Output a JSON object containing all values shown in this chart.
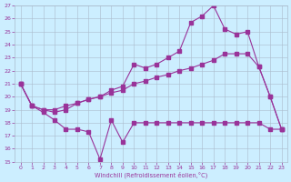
{
  "xlabel": "Windchill (Refroidissement éolien,°C)",
  "xlim": [
    -0.5,
    23.5
  ],
  "ylim": [
    15,
    27
  ],
  "yticks": [
    15,
    16,
    17,
    18,
    19,
    20,
    21,
    22,
    23,
    24,
    25,
    26,
    27
  ],
  "xticks": [
    0,
    1,
    2,
    3,
    4,
    5,
    6,
    7,
    8,
    9,
    10,
    11,
    12,
    13,
    14,
    15,
    16,
    17,
    18,
    19,
    20,
    21,
    22,
    23
  ],
  "bg_color": "#cceeff",
  "grid_color": "#aabbcc",
  "line_color": "#993399",
  "series1_x": [
    0,
    1,
    2,
    3,
    4,
    5,
    6,
    7,
    8,
    9,
    10,
    11,
    12,
    13,
    14,
    15,
    16,
    17,
    18,
    19,
    20,
    21,
    22,
    23
  ],
  "series1_y": [
    21.0,
    19.3,
    18.8,
    18.2,
    17.5,
    17.5,
    17.3,
    15.2,
    18.2,
    16.5,
    18.0,
    18.0,
    18.0,
    18.0,
    18.0,
    18.0,
    18.0,
    18.0,
    18.0,
    18.0,
    18.0,
    18.0,
    17.5,
    17.5
  ],
  "series2_x": [
    0,
    1,
    2,
    3,
    4,
    5,
    6,
    7,
    8,
    9,
    10,
    11,
    12,
    13,
    14,
    15,
    16,
    17,
    18,
    19,
    20,
    21,
    22,
    23
  ],
  "series2_y": [
    21.0,
    19.3,
    19.0,
    19.0,
    19.3,
    19.5,
    19.8,
    20.0,
    20.3,
    20.5,
    21.0,
    21.2,
    21.5,
    21.7,
    22.0,
    22.2,
    22.5,
    22.8,
    23.3,
    23.3,
    23.3,
    22.3,
    20.0,
    17.5
  ],
  "series3_x": [
    0,
    1,
    2,
    3,
    4,
    5,
    6,
    7,
    8,
    9,
    10,
    11,
    12,
    13,
    14,
    15,
    16,
    17,
    18,
    19,
    20,
    21,
    22,
    23
  ],
  "series3_y": [
    21.0,
    19.3,
    19.0,
    18.8,
    19.0,
    19.5,
    19.8,
    20.0,
    20.5,
    20.8,
    22.5,
    22.2,
    22.5,
    23.0,
    23.5,
    25.7,
    26.2,
    27.0,
    25.2,
    24.8,
    25.0,
    22.3,
    20.0,
    17.5
  ]
}
